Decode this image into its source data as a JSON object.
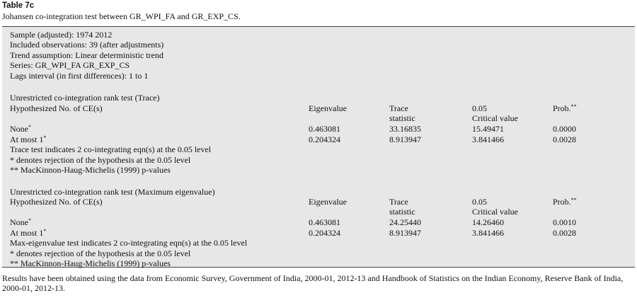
{
  "table_label": "Table 7c",
  "caption": "Johansen co-integration test between GR_WPI_FA and GR_EXP_CS.",
  "info": [
    "Sample (adjusted): 1974 2012",
    "Included observations: 39 (after adjustments)",
    "Trend assumption: Linear deterministic trend",
    "Series: GR_WPI_FA GR_EXP_CS",
    "Lags interval (in first differences): 1 to 1"
  ],
  "trace_section": {
    "heading": "Unrestricted co-integration rank test (Trace)",
    "col_hypothesized": "Hypothesized No. of CE(s)",
    "col_eigenvalue": "Eigenvalue",
    "col_stat_line1": "Trace",
    "col_stat_line2": "statistic",
    "col_crit_line1": "0.05",
    "col_crit_line2": "Critical value",
    "col_prob": "Prob.",
    "col_prob_sup": "**",
    "rows": [
      {
        "label": "None",
        "sup": "*",
        "eigenvalue": "0.463081",
        "stat": "33.16835",
        "crit": "15.49471",
        "prob": "0.0000"
      },
      {
        "label": "At most 1",
        "sup": "*",
        "eigenvalue": "0.204324",
        "stat": "8.913947",
        "crit": "3.841466",
        "prob": "0.0028"
      }
    ],
    "notes": [
      "Trace test indicates 2 co-integrating eqn(s) at the 0.05 level",
      "* denotes rejection of the hypothesis at the 0.05 level",
      "** MacKinnon-Haug-Michelis (1999) p-values"
    ]
  },
  "maxeig_section": {
    "heading": "Unrestricted co-integration rank test (Maximum eigenvalue)",
    "col_hypothesized": "Hypothesized No. of CE(s)",
    "col_eigenvalue": "Eigenvalue",
    "col_stat_line1": "Trace",
    "col_stat_line2": "statistic",
    "col_crit_line1": "0.05",
    "col_crit_line2": "Critical value",
    "col_prob": "Prob.",
    "col_prob_sup": "**",
    "rows": [
      {
        "label": "None",
        "sup": "*",
        "eigenvalue": "0.463081",
        "stat": "24.25440",
        "crit": "14.26460",
        "prob": "0.0010"
      },
      {
        "label": "At most 1",
        "sup": "*",
        "eigenvalue": "0.204324",
        "stat": "8.913947",
        "crit": "3.841466",
        "prob": "0.0028"
      }
    ],
    "notes": [
      "Max-eigenvalue test indicates 2 co-integrating eqn(s) at the 0.05 level",
      "* denotes rejection of the hypothesis at the 0.05 level",
      "** MacKinnon-Haug-Michelis (1999) p-values"
    ]
  },
  "footer": "Results have been obtained using the data from Economic Survey, Government of India, 2000-01, 2012-13 and Handbook of Statistics on the Indian Economy, Reserve Bank of India, 2000-01, 2012-13."
}
